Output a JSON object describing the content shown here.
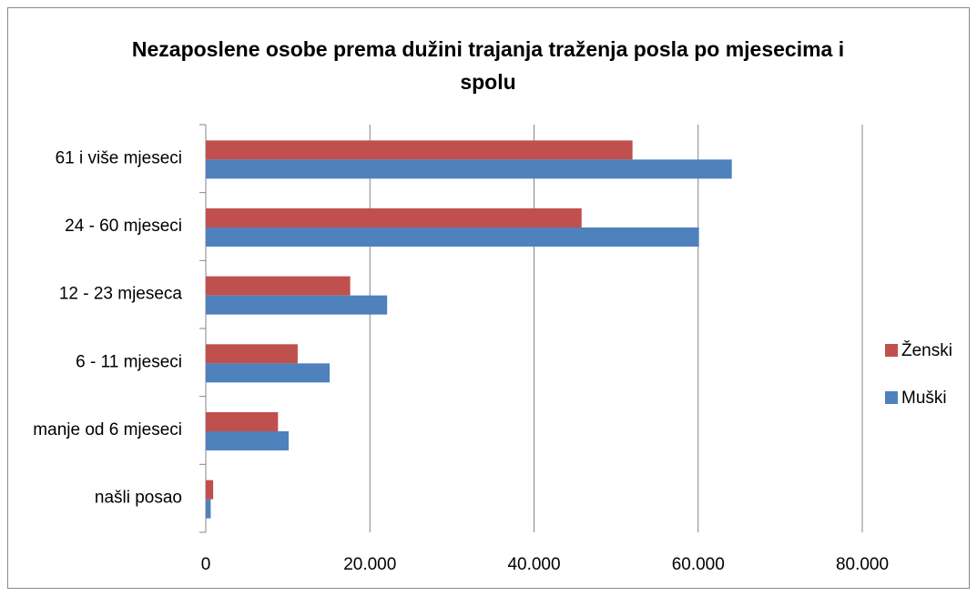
{
  "chart_data": {
    "type": "hbar",
    "title": "Nezaposlene osobe prema dužini trajanja traženja posla po mjesecima i spolu",
    "categories": [
      "61 i više mjeseci",
      "24 - 60 mjeseci",
      "12 - 23 mjeseca",
      "6 - 11 mjeseci",
      "manje od 6 mjeseci",
      "našli posao"
    ],
    "series": [
      {
        "name": "Ženski",
        "color": "#c0504d",
        "values": [
          52000,
          45800,
          17600,
          11200,
          8800,
          900
        ]
      },
      {
        "name": "Muški",
        "color": "#4f81bd",
        "values": [
          64100,
          60100,
          22100,
          15100,
          10100,
          600
        ]
      }
    ],
    "xlim": [
      0,
      80000
    ],
    "xticks": [
      0,
      {
        "value": 20000,
        "label": "20.000"
      },
      {
        "value": 40000,
        "label": "40.000"
      },
      {
        "value": 60000,
        "label": "60.000"
      },
      {
        "value": 80000,
        "label": "80.000"
      }
    ],
    "grid": true,
    "legend": "right"
  }
}
